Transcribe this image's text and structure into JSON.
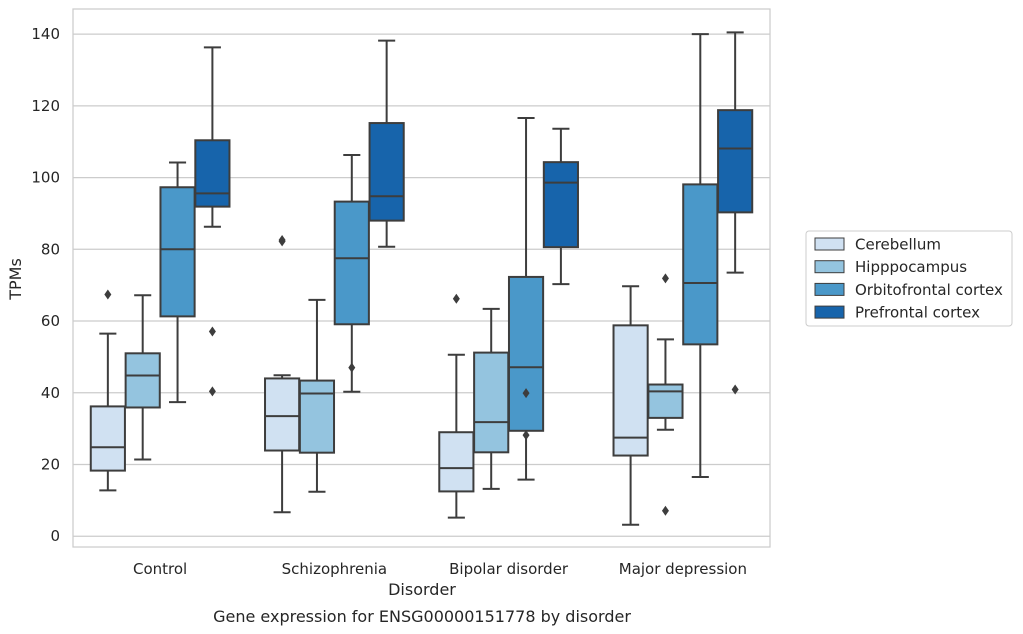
{
  "chart_data": {
    "type": "boxplot",
    "caption": "Gene expression for ENSG00000151778 by disorder",
    "xlabel": "Disorder",
    "ylabel": "TPMs",
    "ylim": [
      -3,
      147
    ],
    "yticks": [
      0,
      20,
      40,
      60,
      80,
      100,
      120,
      140
    ],
    "grid": true,
    "legend_position": "right",
    "categories": [
      "Control",
      "Schizophrenia",
      "Bipolar disorder",
      "Major depression"
    ],
    "series": [
      {
        "name": "Cerebellum",
        "color": "#d0e1f2",
        "boxes": [
          {
            "whislo": 12.8,
            "q1": 18.3,
            "med": 24.8,
            "q3": 36.2,
            "whishi": 56.5,
            "fliers": [
              67.4
            ]
          },
          {
            "whislo": 6.7,
            "q1": 23.9,
            "med": 33.5,
            "q3": 44.0,
            "whishi": 44.9,
            "fliers": [
              82.6,
              82.2
            ]
          },
          {
            "whislo": 5.2,
            "q1": 12.5,
            "med": 19.0,
            "q3": 29.0,
            "whishi": 50.6,
            "fliers": [
              66.2
            ]
          },
          {
            "whislo": 3.2,
            "q1": 22.5,
            "med": 27.5,
            "q3": 58.8,
            "whishi": 69.7,
            "fliers": []
          }
        ]
      },
      {
        "name": "Hipppocampus",
        "color": "#94c4df",
        "boxes": [
          {
            "whislo": 21.4,
            "q1": 35.9,
            "med": 44.8,
            "q3": 51.0,
            "whishi": 67.2,
            "fliers": []
          },
          {
            "whislo": 12.4,
            "q1": 23.3,
            "med": 39.8,
            "q3": 43.4,
            "whishi": 65.9,
            "fliers": []
          },
          {
            "whislo": 13.2,
            "q1": 23.4,
            "med": 31.8,
            "q3": 51.2,
            "whishi": 63.4,
            "fliers": []
          },
          {
            "whislo": 29.7,
            "q1": 33.0,
            "med": 40.4,
            "q3": 42.3,
            "whishi": 54.9,
            "fliers": [
              71.9,
              7.1
            ]
          }
        ]
      },
      {
        "name": "Orbitofrontal cortex",
        "color": "#4a98c9",
        "boxes": [
          {
            "whislo": 37.4,
            "q1": 61.3,
            "med": 80.0,
            "q3": 97.3,
            "whishi": 104.2,
            "fliers": []
          },
          {
            "whislo": 40.3,
            "q1": 59.1,
            "med": 77.5,
            "q3": 93.3,
            "whishi": 106.3,
            "fliers": [
              47.0
            ]
          },
          {
            "whislo": 15.8,
            "q1": 29.4,
            "med": 47.1,
            "q3": 72.3,
            "whishi": 116.6,
            "fliers": [
              39.9,
              28.2
            ]
          },
          {
            "whislo": 16.5,
            "q1": 53.5,
            "med": 70.6,
            "q3": 98.1,
            "whishi": 140.0,
            "fliers": []
          }
        ]
      },
      {
        "name": "Prefrontal cortex",
        "color": "#1764ab",
        "boxes": [
          {
            "whislo": 86.3,
            "q1": 91.9,
            "med": 95.6,
            "q3": 110.4,
            "whishi": 136.3,
            "fliers": [
              57.1,
              40.4
            ]
          },
          {
            "whislo": 80.7,
            "q1": 88.0,
            "med": 94.8,
            "q3": 115.2,
            "whishi": 138.2,
            "fliers": []
          },
          {
            "whislo": 70.3,
            "q1": 80.6,
            "med": 98.6,
            "q3": 104.3,
            "whishi": 113.6,
            "fliers": []
          },
          {
            "whislo": 73.5,
            "q1": 90.3,
            "med": 108.1,
            "q3": 118.8,
            "whishi": 140.5,
            "fliers": [
              40.9
            ]
          }
        ]
      }
    ]
  }
}
